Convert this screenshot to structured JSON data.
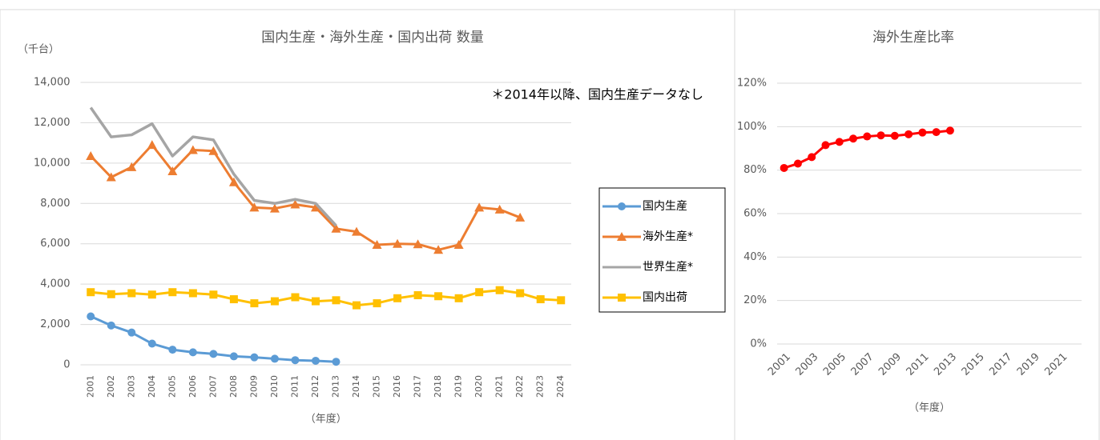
{
  "chart_data": [
    {
      "type": "line",
      "title": "国内生産・海外生産・国内出荷 数量",
      "y_label": "（千台）",
      "x_label": "（年度）",
      "annotation": "＊2014年以降、国内生産データなし",
      "categories": [
        "2001",
        "2002",
        "2003",
        "2004",
        "2005",
        "2006",
        "2007",
        "2008",
        "2009",
        "2010",
        "2011",
        "2012",
        "2013",
        "2014",
        "2015",
        "2016",
        "2017",
        "2018",
        "2019",
        "2020",
        "2021",
        "2022",
        "2023",
        "2024"
      ],
      "series": [
        {
          "name": "国内生産",
          "color": "#5b9bd5",
          "marker": "circle",
          "values": [
            2400,
            1950,
            1600,
            1050,
            750,
            620,
            540,
            420,
            370,
            300,
            230,
            200,
            150,
            null,
            null,
            null,
            null,
            null,
            null,
            null,
            null,
            null,
            null,
            null
          ]
        },
        {
          "name": "海外生産*",
          "color": "#ed7d31",
          "marker": "triangle",
          "values": [
            10350,
            9300,
            9800,
            10900,
            9600,
            10650,
            10600,
            9050,
            7800,
            7750,
            7950,
            7800,
            6750,
            6600,
            5950,
            6000,
            5980,
            5700,
            5950,
            7800,
            7700,
            7300,
            null,
            null
          ]
        },
        {
          "name": "世界生産*",
          "color": "#a5a5a5",
          "marker": "none",
          "values": [
            12750,
            11300,
            11400,
            11950,
            10350,
            11300,
            11150,
            9450,
            8150,
            8000,
            8200,
            8000,
            6900,
            null,
            null,
            null,
            null,
            null,
            null,
            null,
            null,
            null,
            null,
            null
          ]
        },
        {
          "name": "国内出荷",
          "color": "#ffc000",
          "marker": "square",
          "values": [
            3600,
            3500,
            3550,
            3480,
            3600,
            3550,
            3480,
            3250,
            3050,
            3150,
            3350,
            3150,
            3200,
            2950,
            3050,
            3300,
            3450,
            3400,
            3300,
            3600,
            3700,
            3550,
            3250,
            3200
          ]
        }
      ],
      "ylim": [
        0,
        14000
      ],
      "yticks": [
        0,
        {
          "value": 2000,
          "label": "2,000"
        },
        {
          "value": 4000,
          "label": "4,000"
        },
        {
          "value": 6000,
          "label": "6,000"
        },
        {
          "value": 8000,
          "label": "8,000"
        },
        {
          "value": 10000,
          "label": "10,000"
        },
        {
          "value": 12000,
          "label": "12,000"
        },
        {
          "value": 14000,
          "label": "14,000"
        }
      ],
      "grid": true,
      "legend": "right"
    },
    {
      "type": "line",
      "title": "海外生産比率",
      "x_label": "（年度）",
      "categories": [
        "2001",
        null,
        "2003",
        null,
        "2005",
        null,
        "2007",
        null,
        "2009",
        null,
        "2011",
        null,
        "2013",
        null,
        "2015",
        null,
        "2017",
        null,
        "2019",
        null,
        "2021",
        null
      ],
      "series": [
        {
          "color": "#ff0000",
          "marker": "circle",
          "values": [
            81,
            83,
            86,
            91.5,
            93,
            94.5,
            95.5,
            96,
            95.8,
            96.5,
            97.3,
            97.5,
            98.2,
            null,
            null,
            null,
            null,
            null,
            null,
            null,
            null,
            null
          ]
        }
      ],
      "ylim": [
        0,
        120
      ],
      "yticks": [
        {
          "value": 0,
          "label": "0%"
        },
        {
          "value": 20,
          "label": "20%"
        },
        {
          "value": 40,
          "label": "40%"
        },
        {
          "value": 60,
          "label": "60%"
        },
        {
          "value": 80,
          "label": "80%"
        },
        {
          "value": 100,
          "label": "100%"
        },
        {
          "value": 120,
          "label": "120%"
        }
      ],
      "grid": true
    }
  ]
}
